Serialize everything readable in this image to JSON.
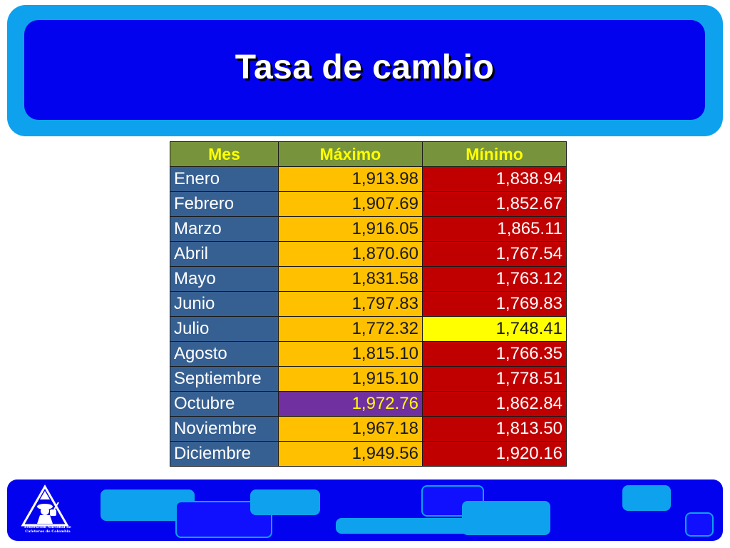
{
  "slide": {
    "title": "Tasa de cambio"
  },
  "table": {
    "headers": {
      "mes": "Mes",
      "maximo": "Máximo",
      "minimo": "Mínimo"
    },
    "rows": [
      {
        "mes": "Enero",
        "maximo": "1,913.98",
        "minimo": "1,838.94"
      },
      {
        "mes": "Febrero",
        "maximo": "1,907.69",
        "minimo": "1,852.67"
      },
      {
        "mes": "Marzo",
        "maximo": "1,916.05",
        "minimo": "1,865.11"
      },
      {
        "mes": "Abril",
        "maximo": "1,870.60",
        "minimo": "1,767.54"
      },
      {
        "mes": "Mayo",
        "maximo": "1,831.58",
        "minimo": "1,763.12"
      },
      {
        "mes": "Junio",
        "maximo": "1,797.83",
        "minimo": "1,769.83"
      },
      {
        "mes": "Julio",
        "maximo": "1,772.32",
        "minimo": "1,748.41"
      },
      {
        "mes": "Agosto",
        "maximo": "1,815.10",
        "minimo": "1,766.35"
      },
      {
        "mes": "Septiembre",
        "maximo": "1,915.10",
        "minimo": "1,778.51"
      },
      {
        "mes": "Octubre",
        "maximo": "1,972.76",
        "minimo": "1,862.84"
      },
      {
        "mes": "Noviembre",
        "maximo": "1,967.18",
        "minimo": "1,813.50"
      },
      {
        "mes": "Diciembre",
        "maximo": "1,949.56",
        "minimo": "1,920.16"
      }
    ]
  },
  "footer": {
    "logo_text_line1": "Federación Nacional de",
    "logo_text_line2": "Cafeteros de Colombia",
    "logo_icon": "coffee-grower-mountain-icon"
  },
  "colors": {
    "header_outer": "#0ea2ee",
    "header_inner": "#0202ee",
    "header_row": "#77933c",
    "header_text": "#ffff00",
    "month_cell": "#376092",
    "max_cell": "#ffc000",
    "min_cell": "#c00000",
    "max_highlight": "#7030a0",
    "min_highlight": "#ffff00"
  }
}
